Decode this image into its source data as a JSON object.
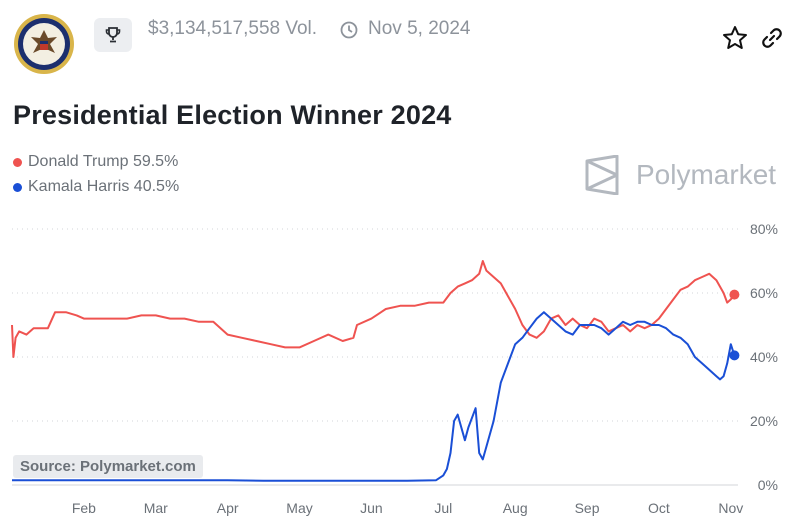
{
  "header": {
    "volume": "$3,134,517,558 Vol.",
    "date": "Nov 5, 2024",
    "brand": "Polymarket"
  },
  "title": "Presidential Election Winner 2024",
  "legend": [
    {
      "label": "Donald Trump 59.5%",
      "color": "#ef5350"
    },
    {
      "label": "Kamala Harris 40.5%",
      "color": "#1a4fd6"
    }
  ],
  "source": "Source: Polymarket.com",
  "chart_data": {
    "type": "line",
    "ylim": [
      0,
      80
    ],
    "yticks": [
      "0%",
      "20%",
      "40%",
      "60%",
      "80%"
    ],
    "ytick_values": [
      0,
      20,
      40,
      60,
      80
    ],
    "x_months": [
      "Feb",
      "Mar",
      "Apr",
      "May",
      "Jun",
      "Jul",
      "Aug",
      "Sep",
      "Oct",
      "Nov"
    ],
    "x_month_pos": [
      1,
      2,
      3,
      4,
      5,
      6,
      7,
      8,
      9,
      10
    ],
    "xlim": [
      0.0,
      10.1
    ],
    "grid": true,
    "series": [
      {
        "name": "Donald Trump",
        "color": "#ef5350",
        "x": [
          0.0,
          0.02,
          0.05,
          0.1,
          0.2,
          0.3,
          0.5,
          0.6,
          0.75,
          0.9,
          1.0,
          1.2,
          1.4,
          1.6,
          1.8,
          2.0,
          2.2,
          2.4,
          2.6,
          2.8,
          3.0,
          3.2,
          3.4,
          3.6,
          3.8,
          4.0,
          4.2,
          4.4,
          4.6,
          4.75,
          4.8,
          5.0,
          5.2,
          5.4,
          5.6,
          5.8,
          6.0,
          6.1,
          6.2,
          6.3,
          6.4,
          6.5,
          6.55,
          6.6,
          6.7,
          6.8,
          6.9,
          7.0,
          7.1,
          7.2,
          7.3,
          7.4,
          7.5,
          7.6,
          7.7,
          7.8,
          7.9,
          8.0,
          8.1,
          8.2,
          8.3,
          8.4,
          8.5,
          8.6,
          8.7,
          8.8,
          8.9,
          9.0,
          9.1,
          9.2,
          9.3,
          9.4,
          9.5,
          9.6,
          9.7,
          9.8,
          9.9,
          9.95,
          10.0,
          10.05
        ],
        "values": [
          50,
          40,
          46,
          48,
          47,
          49,
          49,
          54,
          54,
          53,
          52,
          52,
          52,
          52,
          53,
          53,
          52,
          52,
          51,
          51,
          47,
          46,
          45,
          44,
          43,
          43,
          45,
          47,
          45,
          46,
          50,
          52,
          55,
          56,
          56,
          57,
          57,
          60,
          62,
          63,
          64,
          66,
          70,
          67,
          65,
          63,
          59,
          55,
          50,
          47,
          46,
          48,
          52,
          53,
          50,
          52,
          50,
          49,
          52,
          51,
          48,
          49,
          50,
          48,
          50,
          49,
          50,
          52,
          55,
          58,
          61,
          62,
          64,
          65,
          66,
          64,
          60,
          57,
          58,
          59.5
        ]
      },
      {
        "name": "Kamala Harris",
        "color": "#1a4fd6",
        "x": [
          0.0,
          0.5,
          1.0,
          1.5,
          2.0,
          2.5,
          3.0,
          3.5,
          4.0,
          4.5,
          5.0,
          5.5,
          5.9,
          6.0,
          6.05,
          6.1,
          6.15,
          6.2,
          6.3,
          6.35,
          6.45,
          6.5,
          6.55,
          6.6,
          6.7,
          6.8,
          6.9,
          7.0,
          7.1,
          7.2,
          7.3,
          7.4,
          7.5,
          7.6,
          7.7,
          7.8,
          7.9,
          8.0,
          8.1,
          8.2,
          8.3,
          8.4,
          8.5,
          8.6,
          8.7,
          8.8,
          8.9,
          9.0,
          9.1,
          9.2,
          9.3,
          9.4,
          9.5,
          9.6,
          9.7,
          9.8,
          9.85,
          9.9,
          9.95,
          10.0,
          10.05
        ],
        "values": [
          1.5,
          1.5,
          1.5,
          1.5,
          1.5,
          1.5,
          1.5,
          1.3,
          1.3,
          1.3,
          1.3,
          1.3,
          1.5,
          3,
          5,
          10,
          20,
          22,
          14,
          18,
          24,
          10,
          8,
          12,
          20,
          32,
          38,
          44,
          46,
          49,
          52,
          54,
          52,
          50,
          48,
          47,
          50,
          50,
          50,
          49,
          47,
          49,
          51,
          50,
          51,
          51,
          50,
          50,
          49,
          47,
          46,
          44,
          40,
          38,
          36,
          34,
          33,
          34,
          38,
          44,
          40.5
        ]
      }
    ]
  }
}
